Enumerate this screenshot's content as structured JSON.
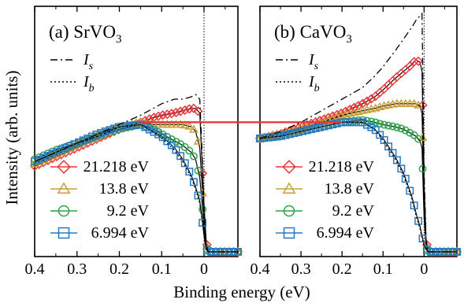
{
  "figure": {
    "ylabel": "Intensity (arb. units)",
    "xlabel": "Binding energy (eV)"
  },
  "chart_data": [
    {
      "type": "line",
      "panel": "(a)",
      "title": "SrVO",
      "title_sub": "3",
      "xlabel": "Binding energy (eV)",
      "ylabel": "Intensity (arb. units)",
      "x_reversed": true,
      "xlim": [
        0.4,
        -0.08
      ],
      "ylim": [
        0,
        1
      ],
      "xticks": [
        0.4,
        0.3,
        0.2,
        0.1,
        0
      ],
      "xtick_labels": [
        "0.4",
        "0.3",
        "0.2",
        "0.1",
        "0"
      ],
      "x": [
        0.4,
        0.35,
        0.3,
        0.25,
        0.2,
        0.15,
        0.12,
        0.1,
        0.07,
        0.05,
        0.03,
        0.02,
        0.01,
        0.005,
        0.0,
        -0.005,
        -0.01,
        -0.02,
        -0.04,
        -0.06,
        -0.08
      ],
      "series": [
        {
          "name": "21.218 eV",
          "color": "#e8373c",
          "marker": "diamond",
          "values": [
            0.37,
            0.41,
            0.45,
            0.49,
            0.53,
            0.56,
            0.58,
            0.59,
            0.6,
            0.61,
            0.62,
            0.62,
            0.6,
            0.4,
            0.2,
            0.05,
            0.0,
            0.0,
            0.0,
            0.0,
            0.0
          ]
        },
        {
          "name": "13.8 eV",
          "color": "#c9a13a",
          "marker": "triangle",
          "values": [
            0.38,
            0.42,
            0.46,
            0.5,
            0.54,
            0.56,
            0.55,
            0.55,
            0.55,
            0.55,
            0.54,
            0.52,
            0.45,
            0.3,
            0.15,
            0.04,
            0.0,
            0.0,
            0.0,
            0.0,
            0.0
          ]
        },
        {
          "name": "9.2 eV",
          "color": "#2aa44a",
          "marker": "circle",
          "values": [
            0.4,
            0.44,
            0.47,
            0.5,
            0.53,
            0.55,
            0.53,
            0.51,
            0.48,
            0.46,
            0.43,
            0.4,
            0.32,
            0.22,
            0.1,
            0.02,
            0.0,
            0.0,
            0.0,
            0.0,
            0.0
          ]
        },
        {
          "name": "6.994 eV",
          "color": "#2a78c0",
          "marker": "square",
          "values": [
            0.39,
            0.43,
            0.47,
            0.51,
            0.54,
            0.55,
            0.52,
            0.5,
            0.45,
            0.4,
            0.33,
            0.28,
            0.22,
            0.15,
            0.07,
            0.01,
            0.0,
            0.0,
            0.0,
            0.0,
            0.0
          ]
        }
      ],
      "reference_lines": [
        {
          "name": "I",
          "sub": "s",
          "style": "dash-dot",
          "values": [
            0.39,
            0.43,
            0.47,
            0.51,
            0.55,
            0.59,
            0.62,
            0.64,
            0.66,
            0.66,
            0.67,
            0.68,
            0.66,
            0.45,
            0.2,
            0.03,
            0.0,
            0.0,
            0.0,
            0.0,
            0.0
          ]
        },
        {
          "name": "I",
          "sub": "b",
          "style": "dotted",
          "values": [
            0.39,
            0.43,
            0.47,
            0.5,
            0.54,
            0.55,
            0.52,
            0.49,
            0.44,
            0.39,
            0.32,
            0.27,
            0.21,
            0.14,
            0.07,
            0.01,
            0.0,
            0.0,
            0.0,
            0.0,
            0.0
          ]
        }
      ]
    },
    {
      "type": "line",
      "panel": "(b)",
      "title": "CaVO",
      "title_sub": "3",
      "xlabel": "Binding energy (eV)",
      "ylabel": "Intensity (arb. units)",
      "x_reversed": true,
      "xlim": [
        0.4,
        -0.08
      ],
      "ylim": [
        0,
        1
      ],
      "xticks": [
        0.4,
        0.3,
        0.2,
        0.1,
        0
      ],
      "xtick_labels": [
        "0.4",
        "0.3",
        "0.2",
        "0.1",
        "0"
      ],
      "x": [
        0.4,
        0.35,
        0.3,
        0.25,
        0.2,
        0.15,
        0.12,
        0.1,
        0.07,
        0.05,
        0.03,
        0.02,
        0.01,
        0.005,
        0.0,
        -0.005,
        -0.01,
        -0.02,
        -0.04,
        -0.06,
        -0.08
      ],
      "series": [
        {
          "name": "21.218 eV",
          "color": "#e8373c",
          "marker": "diamond",
          "values": [
            0.49,
            0.51,
            0.54,
            0.57,
            0.6,
            0.64,
            0.67,
            0.7,
            0.75,
            0.78,
            0.81,
            0.83,
            0.82,
            0.78,
            0.3,
            0.05,
            0.0,
            0.0,
            0.0,
            0.0,
            0.0
          ]
        },
        {
          "name": "13.8 eV",
          "color": "#c9a13a",
          "marker": "triangle",
          "values": [
            0.49,
            0.51,
            0.53,
            0.56,
            0.59,
            0.61,
            0.62,
            0.63,
            0.64,
            0.64,
            0.64,
            0.64,
            0.63,
            0.6,
            0.25,
            0.04,
            0.0,
            0.0,
            0.0,
            0.0,
            0.0
          ]
        },
        {
          "name": "9.2 eV",
          "color": "#2aa44a",
          "marker": "circle",
          "values": [
            0.49,
            0.5,
            0.52,
            0.54,
            0.56,
            0.57,
            0.56,
            0.55,
            0.54,
            0.53,
            0.51,
            0.5,
            0.48,
            0.45,
            0.15,
            0.02,
            0.0,
            0.0,
            0.0,
            0.0,
            0.0
          ]
        },
        {
          "name": "6.994 eV",
          "color": "#2a78c0",
          "marker": "square",
          "values": [
            0.49,
            0.5,
            0.52,
            0.54,
            0.56,
            0.56,
            0.53,
            0.49,
            0.41,
            0.34,
            0.24,
            0.17,
            0.11,
            0.07,
            0.03,
            0.01,
            0.0,
            0.0,
            0.0,
            0.0,
            0.0
          ]
        }
      ],
      "reference_lines": [
        {
          "name": "I",
          "sub": "s",
          "style": "dash-dot",
          "values": [
            0.49,
            0.52,
            0.56,
            0.61,
            0.66,
            0.71,
            0.76,
            0.8,
            0.87,
            0.92,
            0.97,
            1.0,
            1.02,
            1.03,
            0.35,
            0.05,
            0.0,
            0.0,
            0.0,
            0.0,
            0.0
          ]
        },
        {
          "name": "I",
          "sub": "b",
          "style": "dotted",
          "values": [
            0.49,
            0.5,
            0.52,
            0.54,
            0.56,
            0.56,
            0.53,
            0.48,
            0.4,
            0.33,
            0.23,
            0.16,
            0.1,
            0.06,
            0.03,
            0.01,
            0.0,
            0.0,
            0.0,
            0.0,
            0.0
          ]
        }
      ]
    }
  ],
  "connector": {
    "color": "#e8373c",
    "from_panel": "(a)",
    "to_panel": "(b)",
    "level": 0.56
  }
}
